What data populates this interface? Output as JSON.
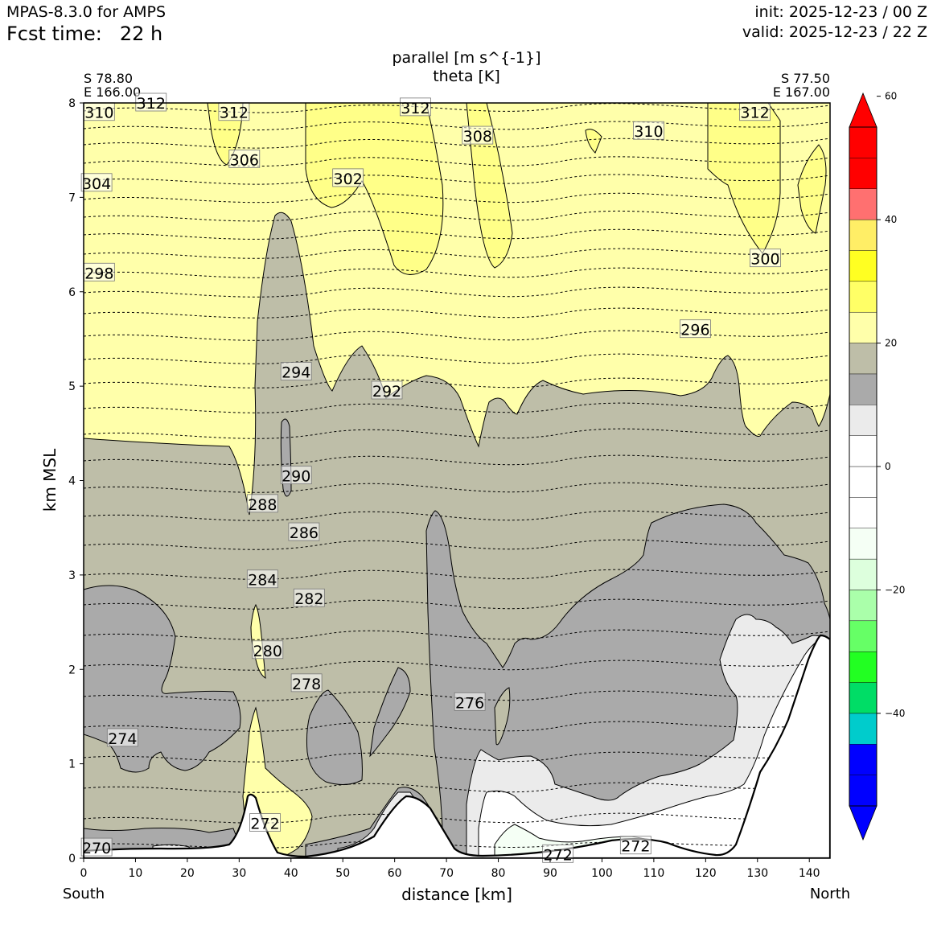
{
  "header": {
    "model": "MPAS-8.3.0 for AMPS",
    "fcst_label": "Fcst time:",
    "fcst_value": "22 h",
    "init": "init: 2025-12-23 / 00 Z",
    "valid": "valid: 2025-12-23 / 22 Z"
  },
  "chart_data": {
    "type": "contour",
    "title_lines": [
      "parallel [m s^{-1}]",
      "theta [K]"
    ],
    "xlabel": "distance [km]",
    "ylabel": "km MSL",
    "xlim": [
      0,
      144
    ],
    "ylim": [
      0,
      8
    ],
    "x_ticks": [
      0,
      10,
      20,
      30,
      40,
      50,
      60,
      70,
      80,
      90,
      100,
      110,
      120,
      130,
      140
    ],
    "y_ticks": [
      0,
      1,
      2,
      3,
      4,
      5,
      6,
      7,
      8
    ],
    "start_point": [
      "S 78.80",
      "E 166.00"
    ],
    "end_point": [
      "S 77.50",
      "E 167.00"
    ],
    "south_label": "South",
    "north_label": "North",
    "colorbar": {
      "ticks": [
        60,
        40,
        20,
        0,
        -20,
        -40
      ],
      "tick_labels": [
        "60",
        "40",
        "20",
        "0",
        "−20",
        "−40"
      ],
      "levels": [
        -55,
        -50,
        -45,
        -40,
        -35,
        -30,
        -25,
        -20,
        -15,
        -10,
        -5,
        0,
        5,
        10,
        15,
        20,
        25,
        30,
        35,
        40,
        45,
        50,
        55
      ],
      "colors": [
        "#0000ff",
        "#0000ff",
        "#00cccc",
        "#00dd66",
        "#22ff22",
        "#66ff66",
        "#aaffaa",
        "#ddffdd",
        "#f5fff5",
        "#ffffff",
        "#ffffff",
        "#ffffff",
        "#ebebeb",
        "#aaaaaa",
        "#bebea8",
        "#ffffaa",
        "#ffff66",
        "#ffff22",
        "#ffee66",
        "#ff7070",
        "#ff0000",
        "#ff0000"
      ],
      "extend": "both"
    },
    "theta_labels": [
      {
        "x": 3,
        "y": 7.9,
        "text": "310"
      },
      {
        "x": 13,
        "y": 8.0,
        "text": "312"
      },
      {
        "x": 29,
        "y": 7.9,
        "text": "312"
      },
      {
        "x": 31,
        "y": 7.4,
        "text": "306"
      },
      {
        "x": 2.5,
        "y": 7.15,
        "text": "304"
      },
      {
        "x": 51,
        "y": 7.2,
        "text": "302"
      },
      {
        "x": 64,
        "y": 7.95,
        "text": "312"
      },
      {
        "x": 76,
        "y": 7.65,
        "text": "308"
      },
      {
        "x": 109,
        "y": 7.7,
        "text": "310"
      },
      {
        "x": 129.5,
        "y": 7.9,
        "text": "312"
      },
      {
        "x": 131.5,
        "y": 6.35,
        "text": "300"
      },
      {
        "x": 3,
        "y": 6.2,
        "text": "298"
      },
      {
        "x": 118,
        "y": 5.6,
        "text": "296"
      },
      {
        "x": 41,
        "y": 5.15,
        "text": "294"
      },
      {
        "x": 58.5,
        "y": 4.95,
        "text": "292"
      },
      {
        "x": 41,
        "y": 4.05,
        "text": "290"
      },
      {
        "x": 34.5,
        "y": 3.75,
        "text": "288"
      },
      {
        "x": 42.5,
        "y": 3.45,
        "text": "286"
      },
      {
        "x": 34.5,
        "y": 2.95,
        "text": "284"
      },
      {
        "x": 43.5,
        "y": 2.75,
        "text": "282"
      },
      {
        "x": 35.5,
        "y": 2.2,
        "text": "280"
      },
      {
        "x": 43,
        "y": 1.85,
        "text": "278"
      },
      {
        "x": 74.5,
        "y": 1.65,
        "text": "276"
      },
      {
        "x": 7.5,
        "y": 1.27,
        "text": "274"
      },
      {
        "x": 35,
        "y": 0.37,
        "text": "272"
      },
      {
        "x": 91.5,
        "y": 0.04,
        "text": "272"
      },
      {
        "x": 106.5,
        "y": 0.13,
        "text": "272"
      },
      {
        "x": 2.5,
        "y": 0.11,
        "text": "270"
      }
    ]
  }
}
